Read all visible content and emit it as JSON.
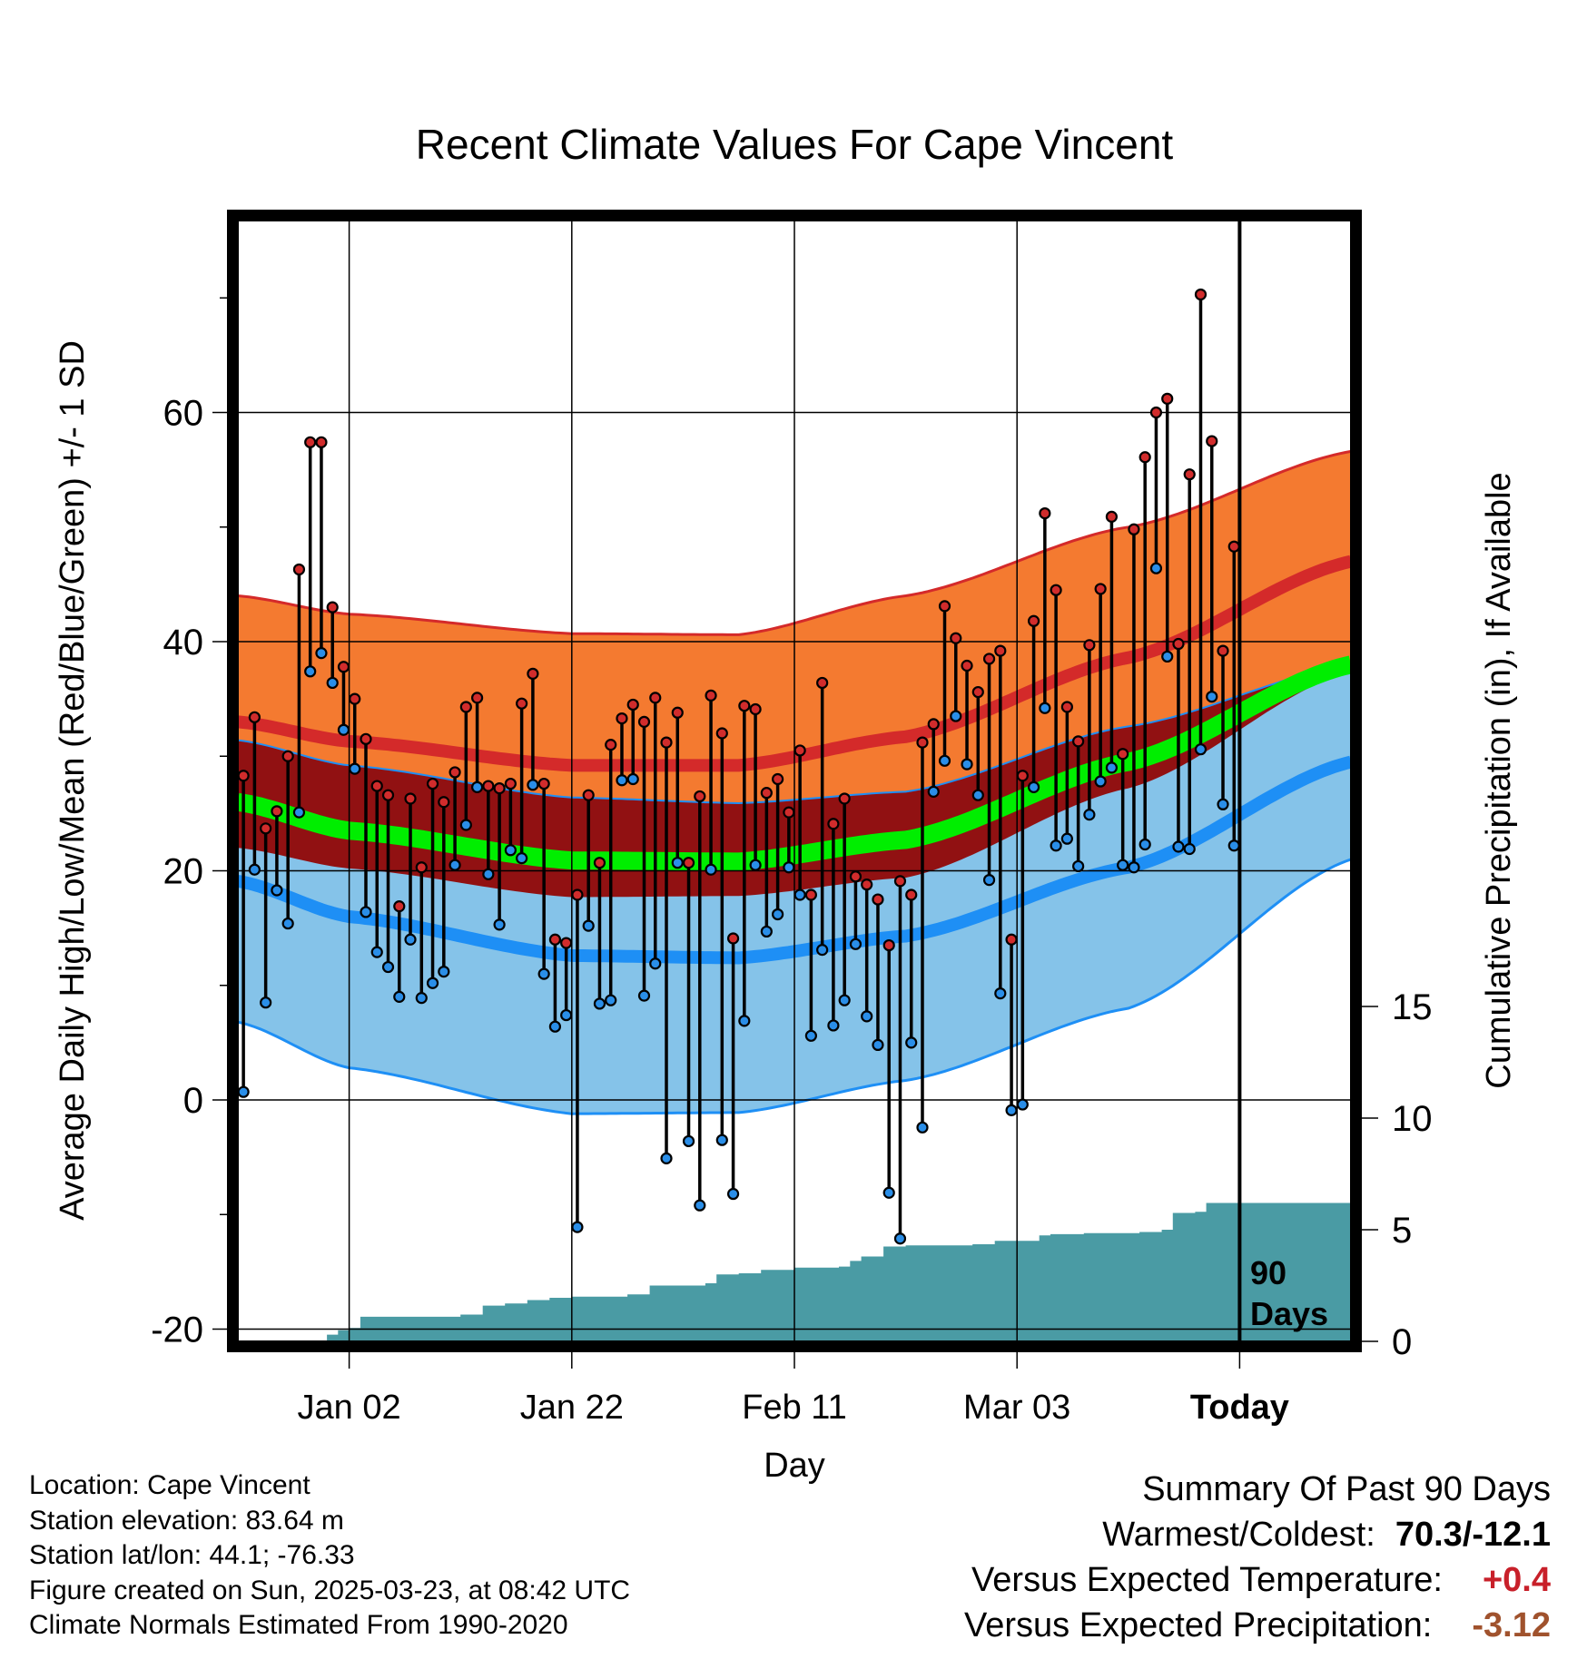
{
  "chart_data": {
    "type": "line",
    "title": "Recent Climate Values For Cape Vincent",
    "xlabel": "Day",
    "ylabel_left": "Average Daily High/Low/Mean (Red/Blue/Green) +/- 1 SD",
    "ylabel_right": "Cumulative Precipitation (in), If Available",
    "x_tick_labels": [
      "Jan 02",
      "Jan 22",
      "Feb 11",
      "Mar 03",
      "Today"
    ],
    "y_ticks_left": [
      "-20",
      "0",
      "20",
      "40",
      "60"
    ],
    "y_ticks_right": [
      "0",
      "5",
      "10",
      "15"
    ],
    "ylim_left": [
      -21.5,
      76
    ],
    "ylim_right": [
      -0.2,
      16
    ],
    "grid": true,
    "period_label_line1": "90",
    "period_label_line2": "Days",
    "colors": {
      "high_band": "#f47a30",
      "high_line": "#d42a2a",
      "overlap_band": "#911112",
      "mean_line": "#00ee00",
      "low_band": "#85c3e9",
      "low_line": "#1e8ff5",
      "precip_fill": "#4a9ba4",
      "high_dot": "#d12c2c",
      "low_dot": "#2a8ee8"
    },
    "normal_high": {
      "days": [
        0,
        10,
        30,
        45,
        60,
        80,
        100
      ],
      "values": [
        33.0,
        31.3,
        29.2,
        29.2,
        31.7,
        38.6,
        47.0
      ]
    },
    "normal_high_sd_upper": {
      "days": [
        0,
        10,
        30,
        45,
        60,
        80,
        100
      ],
      "values": [
        44.0,
        42.4,
        40.7,
        40.6,
        44.0,
        50.0,
        56.6
      ]
    },
    "normal_low": {
      "days": [
        0,
        10,
        30,
        45,
        60,
        80,
        100
      ],
      "values": [
        19.1,
        16.0,
        12.6,
        12.4,
        14.3,
        20.3,
        29.5
      ]
    },
    "normal_low_sd_lower": {
      "days": [
        0,
        10,
        30,
        45,
        60,
        80,
        100
      ],
      "values": [
        6.8,
        2.8,
        -1.2,
        -1.1,
        1.7,
        8.0,
        21.0
      ]
    },
    "normal_mean": {
      "days": [
        0,
        10,
        30,
        45,
        60,
        80,
        100
      ],
      "values": [
        26.0,
        23.5,
        20.9,
        20.8,
        22.7,
        29.5,
        38.0
      ]
    },
    "daily_high": [
      28.3,
      33.4,
      23.7,
      25.2,
      30.0,
      46.3,
      57.4,
      57.4,
      43.0,
      37.8,
      35.0,
      31.5,
      27.4,
      26.6,
      16.9,
      26.3,
      20.3,
      27.6,
      26.0,
      28.6,
      34.3,
      35.1,
      27.4,
      27.2,
      27.6,
      34.6,
      37.2,
      27.6,
      14.0,
      13.7,
      17.9,
      26.6,
      20.7,
      31.0,
      33.3,
      34.5,
      33.0,
      35.1,
      31.2,
      33.8,
      20.7,
      26.5,
      35.3,
      32.0,
      14.1,
      34.4,
      34.1,
      26.8,
      28.0,
      25.1,
      30.5,
      17.9,
      36.4,
      24.1,
      26.3,
      19.5,
      18.8,
      17.5,
      13.5,
      19.1,
      17.9,
      31.2,
      32.8,
      43.1,
      40.3,
      37.9,
      35.6,
      38.5,
      39.2,
      14.0,
      28.3,
      41.8,
      51.2,
      44.5,
      34.3,
      31.3,
      39.7,
      44.6,
      50.9,
      30.2,
      49.8,
      56.1,
      60.0,
      61.2,
      39.8,
      54.6,
      70.3,
      57.5,
      39.2,
      48.3
    ],
    "daily_low": [
      0.7,
      20.1,
      8.5,
      18.3,
      15.4,
      25.1,
      37.4,
      39.0,
      36.4,
      32.3,
      28.9,
      16.4,
      12.9,
      11.6,
      9.0,
      14.0,
      8.9,
      10.2,
      11.2,
      20.5,
      24.0,
      27.3,
      19.7,
      15.3,
      21.8,
      21.1,
      27.5,
      11.0,
      6.4,
      7.4,
      -11.1,
      15.2,
      8.4,
      8.7,
      27.9,
      28.0,
      9.1,
      11.9,
      -5.1,
      20.7,
      -3.6,
      -9.2,
      20.1,
      -3.5,
      -8.2,
      6.9,
      20.5,
      14.7,
      16.2,
      20.3,
      17.9,
      5.6,
      13.1,
      6.5,
      8.7,
      13.6,
      7.3,
      4.8,
      -8.1,
      -12.1,
      5.0,
      -2.4,
      26.9,
      29.6,
      33.5,
      29.3,
      26.6,
      19.2,
      9.3,
      -0.9,
      -0.4,
      27.3,
      34.2,
      22.2,
      22.8,
      20.4,
      24.9,
      27.8,
      29.0,
      20.5,
      20.3,
      22.3,
      46.4,
      38.7,
      22.1,
      21.9,
      30.6,
      35.2,
      25.8,
      22.2
    ],
    "cumulative_precip": {
      "days": [
        6,
        8,
        9,
        10,
        11,
        20,
        22,
        24,
        26,
        28,
        30,
        35,
        37,
        42,
        43,
        45,
        47,
        50,
        54,
        55,
        56,
        58,
        60,
        61,
        64,
        66,
        68,
        72,
        73,
        76,
        81,
        83,
        84,
        86,
        87,
        90,
        100
      ],
      "values": [
        0.0,
        0.3,
        0.5,
        0.6,
        1.1,
        1.2,
        1.6,
        1.7,
        1.85,
        1.95,
        2.0,
        2.1,
        2.5,
        2.6,
        3.0,
        3.05,
        3.2,
        3.3,
        3.35,
        3.6,
        3.8,
        4.25,
        4.3,
        4.3,
        4.3,
        4.35,
        4.5,
        4.75,
        4.8,
        4.85,
        4.9,
        5.0,
        5.75,
        5.8,
        6.2,
        6.2,
        6.2
      ]
    },
    "total_days": 100,
    "today_day": 90
  },
  "footer": {
    "location": "Location: Cape Vincent",
    "elevation": "Station elevation: 83.64 m",
    "latlon": "Station lat/lon: 44.1; -76.33",
    "created": "Figure created on Sun, 2025-03-23, at 08:42 UTC",
    "normals": "Climate Normals Estimated From 1990-2020"
  },
  "summary": {
    "title": "Summary Of Past 90 Days",
    "warmest_label": "Warmest/Coldest:",
    "warmest_value": "70.3/-12.1",
    "temp_label": "Versus Expected Temperature:",
    "temp_value": "+0.4",
    "temp_color": "#c8202a",
    "precip_label": "Versus Expected Precipitation:",
    "precip_value": "-3.12",
    "precip_color": "#a0522d"
  }
}
